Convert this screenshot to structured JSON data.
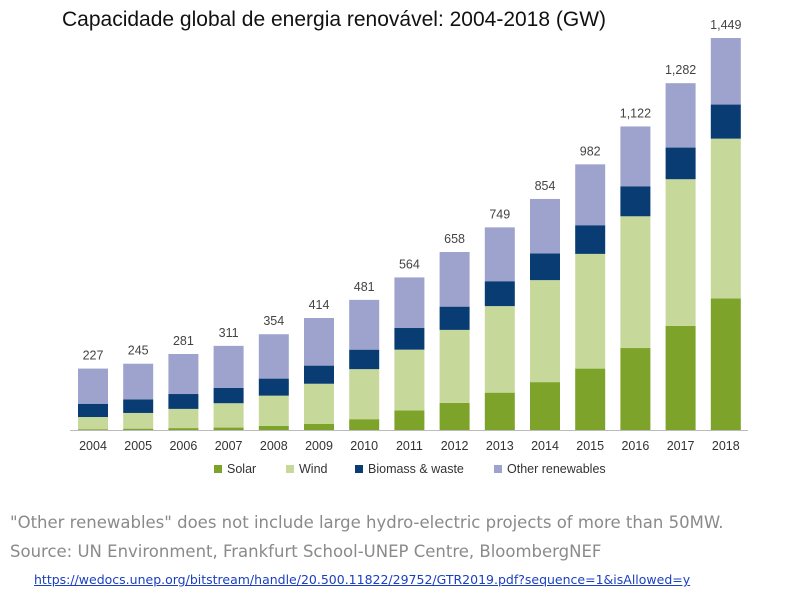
{
  "chart_data": {
    "type": "bar",
    "stacked": true,
    "title": "Capacidade global de energia renovável: 2004-2018 (GW)",
    "categories": [
      "2004",
      "2005",
      "2006",
      "2007",
      "2008",
      "2009",
      "2010",
      "2011",
      "2012",
      "2013",
      "2014",
      "2015",
      "2016",
      "2017",
      "2018"
    ],
    "totals": [
      227,
      245,
      281,
      311,
      354,
      414,
      481,
      564,
      658,
      749,
      854,
      982,
      1122,
      1282,
      1449
    ],
    "total_labels": [
      "227",
      "245",
      "281",
      "311",
      "354",
      "414",
      "481",
      "564",
      "658",
      "749",
      "854",
      "982",
      "1,122",
      "1,282",
      "1,449"
    ],
    "series": [
      {
        "name": "Solar",
        "color": "#7ea32a",
        "values": [
          3,
          5,
          7,
          9,
          15,
          23,
          40,
          72,
          100,
          138,
          177,
          227,
          303,
          385,
          486
        ]
      },
      {
        "name": "Wind",
        "color": "#c6d89a",
        "values": [
          45,
          58,
          71,
          90,
          112,
          148,
          185,
          225,
          270,
          320,
          377,
          424,
          487,
          542,
          591
        ]
      },
      {
        "name": "Biomass & waste",
        "color": "#083c72",
        "values": [
          49,
          50,
          55,
          57,
          63,
          67,
          72,
          80,
          86,
          92,
          99,
          106,
          111,
          117,
          126
        ]
      },
      {
        "name": "Other renewables",
        "color": "#9da3cc",
        "values": [
          130,
          132,
          148,
          155,
          164,
          176,
          184,
          187,
          202,
          199,
          201,
          225,
          221,
          238,
          246
        ]
      }
    ],
    "ylim": [
      0,
      1449
    ],
    "grid": false,
    "legend": "bottom"
  },
  "notes": {
    "line1": "\"Other renewables\" does not include large hydro-electric projects of more than 50MW.",
    "line2": "Source: UN Environment, Frankfurt School-UNEP Centre, BloombergNEF",
    "link": "https://wedocs.unep.org/bitstream/handle/20.500.11822/29752/GTR2019.pdf?sequence=1&isAllowed=y"
  }
}
